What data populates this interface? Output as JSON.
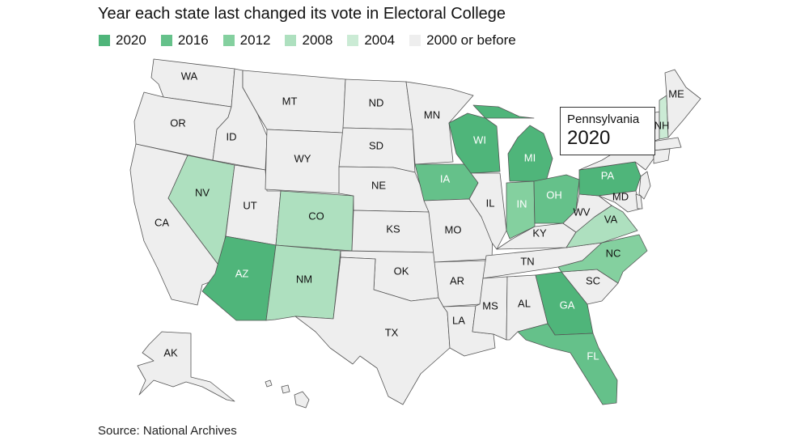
{
  "title": "Year each state last changed its vote in Electoral College",
  "legend": [
    {
      "label": "2020",
      "color": "#4fb57a"
    },
    {
      "label": "2016",
      "color": "#65c18a"
    },
    {
      "label": "2012",
      "color": "#84d09f"
    },
    {
      "label": "2008",
      "color": "#aee0bf"
    },
    {
      "label": "2004",
      "color": "#cbebd5"
    },
    {
      "label": "2000 or before",
      "color": "#eeeeee"
    }
  ],
  "tooltip": {
    "state": "Pennsylvania",
    "year": "2020"
  },
  "states": [
    {
      "abbr": "WA",
      "year": "2000 or before"
    },
    {
      "abbr": "OR",
      "year": "2000 or before"
    },
    {
      "abbr": "CA",
      "year": "2000 or before"
    },
    {
      "abbr": "ID",
      "year": "2000 or before"
    },
    {
      "abbr": "NV",
      "year": "2008"
    },
    {
      "abbr": "UT",
      "year": "2000 or before"
    },
    {
      "abbr": "AZ",
      "year": "2020"
    },
    {
      "abbr": "MT",
      "year": "2000 or before"
    },
    {
      "abbr": "WY",
      "year": "2000 or before"
    },
    {
      "abbr": "CO",
      "year": "2008"
    },
    {
      "abbr": "NM",
      "year": "2008"
    },
    {
      "abbr": "ND",
      "year": "2000 or before"
    },
    {
      "abbr": "SD",
      "year": "2000 or before"
    },
    {
      "abbr": "NE",
      "year": "2000 or before"
    },
    {
      "abbr": "KS",
      "year": "2000 or before"
    },
    {
      "abbr": "OK",
      "year": "2000 or before"
    },
    {
      "abbr": "TX",
      "year": "2000 or before"
    },
    {
      "abbr": "MN",
      "year": "2000 or before"
    },
    {
      "abbr": "IA",
      "year": "2016"
    },
    {
      "abbr": "MO",
      "year": "2000 or before"
    },
    {
      "abbr": "AR",
      "year": "2000 or before"
    },
    {
      "abbr": "LA",
      "year": "2000 or before"
    },
    {
      "abbr": "WI",
      "year": "2020"
    },
    {
      "abbr": "IL",
      "year": "2000 or before"
    },
    {
      "abbr": "MI",
      "year": "2020"
    },
    {
      "abbr": "IN",
      "year": "2012"
    },
    {
      "abbr": "OH",
      "year": "2016"
    },
    {
      "abbr": "KY",
      "year": "2000 or before"
    },
    {
      "abbr": "TN",
      "year": "2000 or before"
    },
    {
      "abbr": "MS",
      "year": "2000 or before"
    },
    {
      "abbr": "AL",
      "year": "2000 or before"
    },
    {
      "abbr": "GA",
      "year": "2020"
    },
    {
      "abbr": "FL",
      "year": "2016"
    },
    {
      "abbr": "SC",
      "year": "2000 or before"
    },
    {
      "abbr": "NC",
      "year": "2012"
    },
    {
      "abbr": "VA",
      "year": "2008"
    },
    {
      "abbr": "WV",
      "year": "2000 or before"
    },
    {
      "abbr": "PA",
      "year": "2020"
    },
    {
      "abbr": "MD",
      "year": "2000 or before"
    },
    {
      "abbr": "NH",
      "year": "2004"
    },
    {
      "abbr": "ME",
      "year": "2000 or before"
    },
    {
      "abbr": "AK",
      "year": "2000 or before"
    }
  ],
  "source": "Source: National Archives"
}
